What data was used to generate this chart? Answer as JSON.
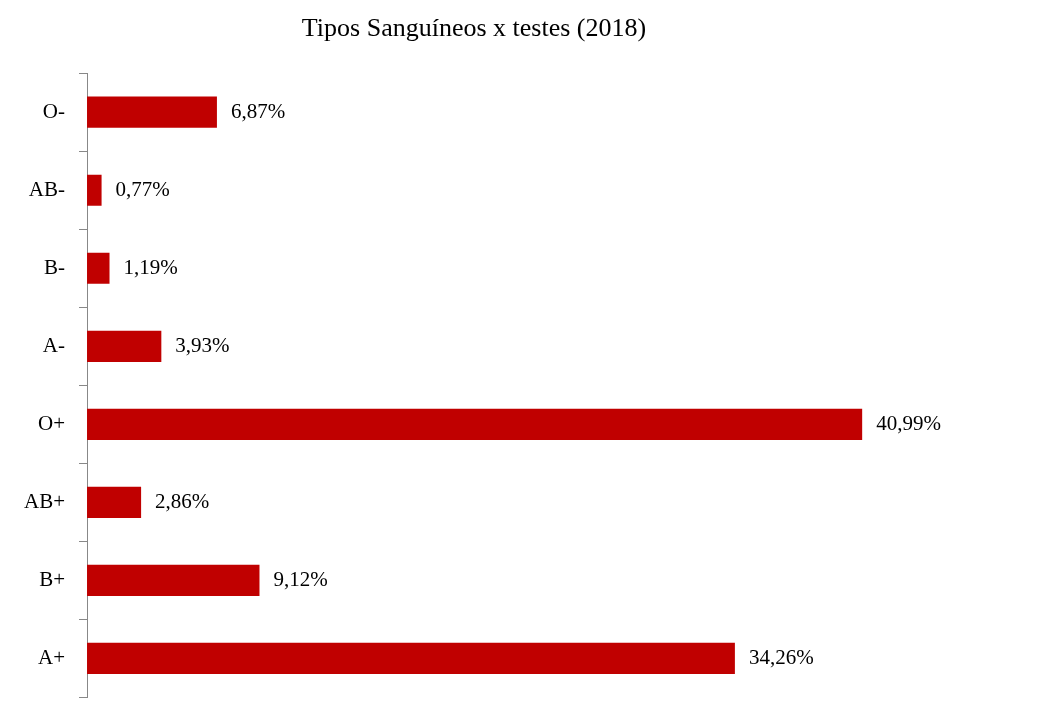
{
  "chart_data": {
    "type": "bar",
    "orientation": "horizontal",
    "title": "Tipos Sanguíneos x testes (2018)",
    "categories": [
      "O-",
      "AB-",
      "B-",
      "A-",
      "O+",
      "AB+",
      "B+",
      "A+"
    ],
    "values": [
      6.87,
      0.77,
      1.19,
      3.93,
      40.99,
      2.86,
      9.12,
      34.26
    ],
    "value_labels": [
      "6,87%",
      "0,77%",
      "1,19%",
      "3,93%",
      "40,99%",
      "2,86%",
      "9,12%",
      "34,26%"
    ],
    "color": "#c00000",
    "legend": false,
    "tick_labels": "y"
  }
}
